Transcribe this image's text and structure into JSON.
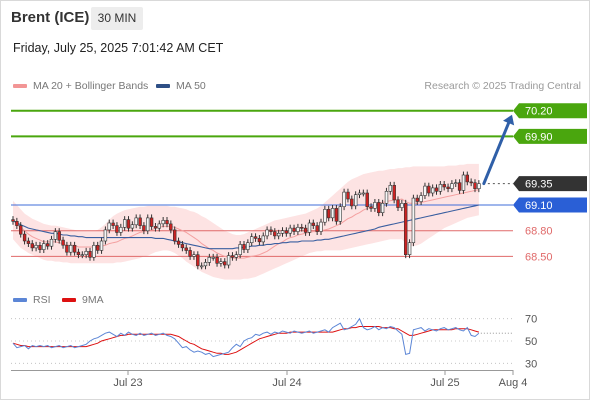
{
  "header": {
    "instrument": "Brent (ICE)",
    "timeframe": "30 MIN",
    "datetime": "Friday, July 25, 2025 7:01:42 AM CET",
    "credit": "Research © 2025 Trading Central"
  },
  "legend": {
    "ma20": "MA 20 + Bollinger Bands",
    "ma50": "MA 50",
    "rsi": "RSI",
    "ma9": "9MA"
  },
  "colors": {
    "up_candle": "#f5f5f5",
    "down_candle": "#cc2222",
    "bollinger_fill": "#fde3e3",
    "ma20": "#f4a0a0",
    "ma50": "#3a5fa0",
    "resistance": "#4aa60e",
    "pivot": "#3f6ed8",
    "support": "#e06a6a",
    "current": "#333333",
    "arrow": "#2f5fa8",
    "rsi": "#5c86d6",
    "rsi_ma": "#dd1111"
  },
  "chart_data": [
    {
      "type": "candlestick",
      "ylim": [
        68.26,
        70.36
      ],
      "x_ticks": [
        "Jul 23",
        "Jul 24",
        "Jul 25",
        "Aug 4"
      ],
      "levels": [
        {
          "value": 70.2,
          "label": "70.20",
          "kind": "resistance"
        },
        {
          "value": 69.9,
          "label": "69.90",
          "kind": "resistance"
        },
        {
          "value": 69.35,
          "label": "69.35",
          "kind": "current"
        },
        {
          "value": 69.1,
          "label": "69.10",
          "kind": "pivot"
        },
        {
          "value": 68.8,
          "label": "68.80",
          "kind": "support"
        },
        {
          "value": 68.5,
          "label": "68.50",
          "kind": "support"
        }
      ],
      "projection": {
        "from": 69.35,
        "to": 70.2
      },
      "close": [
        68.91,
        68.86,
        68.76,
        68.68,
        68.65,
        68.6,
        68.63,
        68.58,
        68.65,
        68.62,
        68.7,
        68.79,
        68.69,
        68.63,
        68.55,
        68.63,
        68.55,
        68.52,
        68.52,
        68.56,
        68.49,
        68.63,
        68.57,
        68.68,
        68.81,
        68.89,
        68.86,
        68.78,
        68.84,
        68.93,
        68.83,
        68.87,
        68.95,
        68.86,
        68.8,
        68.95,
        68.85,
        68.83,
        68.88,
        68.92,
        68.88,
        68.81,
        68.68,
        68.64,
        68.6,
        68.57,
        68.5,
        68.52,
        68.39,
        68.39,
        68.43,
        68.49,
        68.49,
        68.42,
        68.44,
        68.4,
        68.51,
        68.49,
        68.52,
        68.64,
        68.58,
        68.66,
        68.73,
        68.71,
        68.67,
        68.74,
        68.81,
        68.79,
        68.74,
        68.77,
        68.8,
        68.77,
        68.83,
        68.79,
        68.84,
        68.83,
        68.78,
        68.89,
        68.86,
        68.79,
        68.9,
        69.05,
        68.95,
        69.06,
        68.91,
        69.08,
        69.25,
        69.17,
        69.09,
        69.22,
        69.24,
        69.24,
        69.08,
        69.06,
        69.13,
        69.01,
        69.12,
        69.26,
        69.33,
        69.16,
        69.07,
        69.12,
        68.52,
        68.66,
        69.18,
        69.14,
        69.21,
        69.32,
        69.24,
        69.3,
        69.26,
        69.34,
        69.31,
        69.29,
        69.35,
        69.36,
        69.27,
        69.45,
        69.37,
        69.36,
        69.29,
        69.35
      ],
      "ma20": [
        68.93,
        68.87,
        68.84,
        68.8,
        68.76,
        68.73,
        68.71,
        68.69,
        68.67,
        68.67,
        68.67,
        68.67,
        68.66,
        68.65,
        68.63,
        68.63,
        68.63,
        68.61,
        68.61,
        68.61,
        68.61,
        68.61,
        68.61,
        68.62,
        68.63,
        68.65,
        68.66,
        68.67,
        68.69,
        68.71,
        68.72,
        68.74,
        68.76,
        68.78,
        68.79,
        68.8,
        68.81,
        68.83,
        68.84,
        68.85,
        68.85,
        68.85,
        68.84,
        68.82,
        68.8,
        68.78,
        68.75,
        68.72,
        68.69,
        68.65,
        68.62,
        68.59,
        68.57,
        68.54,
        68.52,
        68.5,
        68.49,
        68.48,
        68.48,
        68.48,
        68.48,
        68.49,
        68.5,
        68.51,
        68.52,
        68.54,
        68.56,
        68.59,
        68.62,
        68.65,
        68.67,
        68.7,
        68.72,
        68.73,
        68.75,
        68.76,
        68.77,
        68.78,
        68.79,
        68.79,
        68.8,
        68.81,
        68.82,
        68.84,
        68.86,
        68.88,
        68.91,
        68.94,
        68.96,
        68.99,
        69.01,
        69.04,
        69.06,
        69.08,
        69.1,
        69.12,
        69.13,
        69.14,
        69.15,
        69.16,
        69.16,
        69.17,
        69.14,
        69.12,
        69.12,
        69.12,
        69.13,
        69.14,
        69.15,
        69.16,
        69.17,
        69.18,
        69.19,
        69.2,
        69.21,
        69.22,
        69.23,
        69.24,
        69.25,
        69.26,
        69.27,
        69.28
      ],
      "bb_upper": [
        69.15,
        69.1,
        69.05,
        69.0,
        68.97,
        68.94,
        68.92,
        68.9,
        68.88,
        68.87,
        68.86,
        68.86,
        68.85,
        68.84,
        68.83,
        68.82,
        68.81,
        68.8,
        68.8,
        68.8,
        68.8,
        68.8,
        68.81,
        68.84,
        68.88,
        68.93,
        68.97,
        69.0,
        69.02,
        69.04,
        69.05,
        69.06,
        69.07,
        69.08,
        69.08,
        69.09,
        69.09,
        69.09,
        69.09,
        69.09,
        69.09,
        69.08,
        69.08,
        69.07,
        69.06,
        69.05,
        69.03,
        69.02,
        69.0,
        68.97,
        68.95,
        68.92,
        68.89,
        68.86,
        68.83,
        68.8,
        68.78,
        68.76,
        68.75,
        68.75,
        68.76,
        68.78,
        68.8,
        68.82,
        68.84,
        68.86,
        68.88,
        68.9,
        68.92,
        68.93,
        68.94,
        68.95,
        68.96,
        68.97,
        68.98,
        68.99,
        69.0,
        69.02,
        69.04,
        69.06,
        69.09,
        69.13,
        69.17,
        69.21,
        69.25,
        69.29,
        69.33,
        69.37,
        69.4,
        69.42,
        69.44,
        69.46,
        69.47,
        69.48,
        69.49,
        69.5,
        69.5,
        69.51,
        69.52,
        69.52,
        69.53,
        69.53,
        69.54,
        69.54,
        69.55,
        69.55,
        69.55,
        69.55,
        69.55,
        69.55,
        69.55,
        69.55,
        69.55,
        69.56,
        69.56,
        69.56,
        69.57,
        69.57,
        69.58,
        69.58,
        69.58,
        69.58
      ],
      "bb_lower": [
        68.7,
        68.65,
        68.6,
        68.57,
        68.54,
        68.52,
        68.5,
        68.48,
        68.46,
        68.45,
        68.45,
        68.44,
        68.44,
        68.43,
        68.43,
        68.42,
        68.42,
        68.42,
        68.42,
        68.42,
        68.42,
        68.42,
        68.42,
        68.42,
        68.42,
        68.42,
        68.42,
        68.43,
        68.43,
        68.44,
        68.45,
        68.46,
        68.47,
        68.48,
        68.5,
        68.51,
        68.53,
        68.55,
        68.56,
        68.57,
        68.57,
        68.56,
        68.54,
        68.51,
        68.48,
        68.44,
        68.41,
        68.38,
        68.35,
        68.32,
        68.3,
        68.28,
        68.26,
        68.25,
        68.24,
        68.23,
        68.23,
        68.23,
        68.23,
        68.23,
        68.24,
        68.24,
        68.25,
        68.26,
        68.28,
        68.3,
        68.32,
        68.34,
        68.36,
        68.38,
        68.4,
        68.42,
        68.44,
        68.46,
        68.48,
        68.5,
        68.52,
        68.54,
        68.55,
        68.56,
        68.56,
        68.57,
        68.57,
        68.57,
        68.57,
        68.57,
        68.58,
        68.59,
        68.6,
        68.61,
        68.62,
        68.63,
        68.64,
        68.65,
        68.66,
        68.67,
        68.68,
        68.69,
        68.7,
        68.7,
        68.7,
        68.7,
        68.65,
        68.62,
        68.62,
        68.63,
        68.65,
        68.68,
        68.71,
        68.74,
        68.77,
        68.8,
        68.83,
        68.85,
        68.87,
        68.89,
        68.91,
        68.93,
        68.95,
        68.96,
        68.97,
        68.98
      ],
      "ma50": [
        68.92,
        68.89,
        68.87,
        68.85,
        68.83,
        68.82,
        68.81,
        68.8,
        68.79,
        68.78,
        68.77,
        68.77,
        68.76,
        68.75,
        68.75,
        68.74,
        68.74,
        68.73,
        68.73,
        68.72,
        68.72,
        68.72,
        68.72,
        68.72,
        68.72,
        68.72,
        68.72,
        68.72,
        68.72,
        68.72,
        68.72,
        68.72,
        68.72,
        68.72,
        68.72,
        68.72,
        68.72,
        68.71,
        68.71,
        68.71,
        68.7,
        68.69,
        68.68,
        68.67,
        68.66,
        68.65,
        68.64,
        68.63,
        68.62,
        68.61,
        68.6,
        68.59,
        68.59,
        68.59,
        68.59,
        68.59,
        68.59,
        68.59,
        68.6,
        68.6,
        68.61,
        68.61,
        68.62,
        68.62,
        68.63,
        68.63,
        68.64,
        68.64,
        68.65,
        68.65,
        68.66,
        68.66,
        68.67,
        68.67,
        68.67,
        68.68,
        68.68,
        68.68,
        68.68,
        68.69,
        68.69,
        68.7,
        68.7,
        68.71,
        68.72,
        68.73,
        68.74,
        68.75,
        68.76,
        68.77,
        68.78,
        68.79,
        68.8,
        68.81,
        68.82,
        68.84,
        68.85,
        68.86,
        68.87,
        68.88,
        68.89,
        68.9,
        68.91,
        68.92,
        68.93,
        68.94,
        68.95,
        68.96,
        68.97,
        68.98,
        68.99,
        69.0,
        69.01,
        69.02,
        69.03,
        69.04,
        69.05,
        69.06,
        69.07,
        69.08,
        69.09,
        69.1
      ]
    },
    {
      "type": "line",
      "ylim": [
        24,
        76
      ],
      "y_ticks": [
        "70",
        "50",
        "30"
      ],
      "series": [
        {
          "name": "RSI",
          "values": [
            48,
            44,
            45,
            46,
            43,
            46,
            45,
            46,
            45,
            46,
            44,
            45,
            46,
            44,
            45,
            46,
            44,
            45,
            46,
            47,
            50,
            52,
            53,
            55,
            57,
            58,
            56,
            54,
            57,
            55,
            58,
            56,
            55,
            57,
            55,
            56,
            57,
            55,
            56,
            57,
            55,
            54,
            52,
            48,
            44,
            45,
            42,
            40,
            41,
            40,
            38,
            39,
            36,
            37,
            38,
            39,
            40,
            44,
            47,
            45,
            50,
            52,
            53,
            56,
            55,
            57,
            58,
            56,
            58,
            57,
            59,
            58,
            57,
            59,
            58,
            57,
            58,
            59,
            57,
            58,
            59,
            60,
            58,
            62,
            64,
            66,
            60,
            61,
            63,
            65,
            70,
            62,
            60,
            61,
            63,
            60,
            62,
            61,
            63,
            62,
            59,
            56,
            38,
            39,
            60,
            61,
            62,
            59,
            61,
            60,
            59,
            61,
            62,
            60,
            61,
            62,
            60,
            59,
            62,
            55,
            54,
            57
          ]
        },
        {
          "name": "9MA",
          "values": [
            48,
            47,
            46,
            46,
            45,
            45,
            45,
            45,
            45,
            45,
            45,
            45,
            45,
            45,
            45,
            45,
            45,
            45,
            45,
            45,
            46,
            47,
            48,
            50,
            51,
            52,
            53,
            54,
            55,
            55,
            56,
            56,
            56,
            56,
            56,
            56,
            56,
            56,
            56,
            56,
            56,
            56,
            55,
            54,
            52,
            50,
            48,
            47,
            45,
            43,
            42,
            41,
            40,
            39,
            39,
            38,
            38,
            39,
            40,
            42,
            44,
            46,
            48,
            50,
            52,
            53,
            54,
            55,
            56,
            57,
            57,
            57,
            58,
            58,
            58,
            58,
            58,
            58,
            58,
            58,
            58,
            58,
            58,
            58,
            59,
            60,
            61,
            61,
            62,
            62,
            63,
            63,
            63,
            63,
            63,
            63,
            62,
            62,
            62,
            61,
            61,
            59,
            57,
            55,
            55,
            56,
            57,
            58,
            59,
            60,
            60,
            60,
            60,
            60,
            60,
            61,
            61,
            61,
            61,
            60,
            59,
            58
          ]
        }
      ]
    }
  ]
}
